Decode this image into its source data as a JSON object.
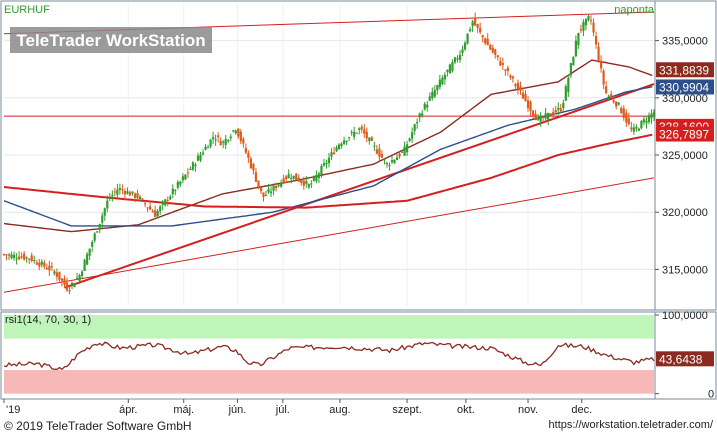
{
  "symbol": "EURHUF",
  "period": "naponta",
  "watermark": "TeleTrader WorkStation",
  "footer": {
    "copyright": "© 2019 TeleTrader Software GmbH",
    "url": "https://workstation.teletrader.com/"
  },
  "colors": {
    "up": "#2e9e2e",
    "down": "#e05a1a",
    "ma_short": "#8b2a1e",
    "ma_mid": "#2c4f8a",
    "ma_long": "#d41f1f",
    "trendline": "#d41f1f",
    "rsi_line": "#8b2a1e",
    "rsi_high_zone": "#bff5b8",
    "rsi_low_zone": "#f7b8b8"
  },
  "chart_data": [
    {
      "type": "line",
      "name": "price-panel",
      "y_ticks": [
        "335,0000",
        "330,0000",
        "325,0000",
        "320,0000",
        "315,0000"
      ],
      "y_tick_values": [
        335,
        330,
        325,
        320,
        315
      ],
      "ylim": [
        311.8,
        338.2
      ],
      "x_labels": [
        "'19",
        "ápr.",
        "máj.",
        "jún.",
        "júl.",
        "aug.",
        "szept.",
        "okt.",
        "nov.",
        "dec."
      ],
      "x_label_days": [
        0,
        74,
        107,
        139,
        166,
        200,
        240,
        275,
        312,
        344
      ],
      "xlim": [
        0,
        387
      ],
      "last_value_labels": [
        {
          "text": "331,8839",
          "value": 331.8839,
          "series": "ma_short"
        },
        {
          "text": "330,9904",
          "value": 330.9904,
          "series": "ma_mid"
        },
        {
          "text": "328,1600",
          "value": 328.16,
          "series": "price"
        },
        {
          "text": "326,7897",
          "value": 326.7897,
          "series": "ma_long"
        }
      ],
      "price_anchor_days": [
        0,
        15,
        30,
        38,
        45,
        54,
        62,
        68,
        80,
        90,
        100,
        110,
        125,
        130,
        138,
        146,
        154,
        170,
        182,
        200,
        212,
        228,
        238,
        248,
        262,
        272,
        279,
        287,
        302,
        318,
        332,
        342,
        349,
        358,
        366,
        374,
        387
      ],
      "price_anchor_values": [
        316.3,
        316.0,
        314.8,
        313.3,
        314.5,
        318.0,
        321.1,
        322.1,
        321.3,
        319.8,
        321.7,
        323.6,
        326.7,
        326.0,
        327.4,
        324.5,
        321.3,
        323.3,
        322.3,
        326.1,
        327.3,
        324.2,
        325.3,
        328.7,
        331.9,
        334.0,
        336.7,
        334.8,
        331.7,
        328.0,
        329.1,
        335.8,
        337.1,
        330.5,
        329.3,
        327.0,
        328.8
      ],
      "series": [
        {
          "name": "ma_short",
          "x": [
            0,
            40,
            80,
            130,
            175,
            220,
            260,
            290,
            330,
            350,
            372,
            387
          ],
          "y": [
            319.0,
            318.3,
            318.9,
            321.6,
            322.8,
            324.2,
            327.0,
            330.3,
            331.4,
            333.3,
            332.7,
            331.9
          ]
        },
        {
          "name": "ma_mid",
          "x": [
            0,
            40,
            100,
            160,
            220,
            260,
            300,
            340,
            370,
            387
          ],
          "y": [
            321.0,
            318.8,
            318.8,
            320.0,
            322.3,
            325.5,
            327.6,
            329.0,
            330.5,
            331.0
          ]
        },
        {
          "name": "ma_long",
          "x": [
            0,
            60,
            120,
            180,
            240,
            290,
            330,
            360,
            387
          ],
          "y": [
            322.2,
            321.3,
            320.5,
            320.4,
            321.0,
            323.0,
            325.0,
            326.0,
            326.8
          ]
        }
      ],
      "trendlines": [
        {
          "x": [
            36,
            387
          ],
          "y": [
            313.4,
            331.2
          ]
        },
        {
          "x": [
            0,
            387
          ],
          "y": [
            313.0,
            323.0
          ]
        },
        {
          "x": [
            0,
            387
          ],
          "y": [
            335.6,
            337.5
          ]
        },
        {
          "x": [
            0,
            387
          ],
          "y": [
            328.4,
            328.4
          ]
        }
      ]
    },
    {
      "type": "line",
      "name": "rsi-panel",
      "title": "rsi1(14, 70, 30, 1)",
      "y_ticks": [
        "100,0000",
        "0"
      ],
      "y_tick_values": [
        100,
        0
      ],
      "ylim": [
        -3,
        100
      ],
      "zones": [
        {
          "from": 70,
          "to": 100,
          "label": "high"
        },
        {
          "from": 0,
          "to": 30,
          "label": "low"
        }
      ],
      "last_value_label": {
        "text": "43,6438",
        "value": 43.6438
      },
      "rsi_anchor_days": [
        0,
        20,
        35,
        45,
        55,
        70,
        90,
        110,
        130,
        138,
        145,
        152,
        170,
        200,
        230,
        250,
        270,
        290,
        310,
        320,
        330,
        345,
        360,
        375,
        387
      ],
      "rsi_anchor_values": [
        36,
        38,
        30,
        52,
        65,
        58,
        62,
        50,
        60,
        55,
        40,
        36,
        58,
        60,
        55,
        64,
        60,
        58,
        40,
        36,
        62,
        60,
        48,
        40,
        44
      ]
    }
  ]
}
